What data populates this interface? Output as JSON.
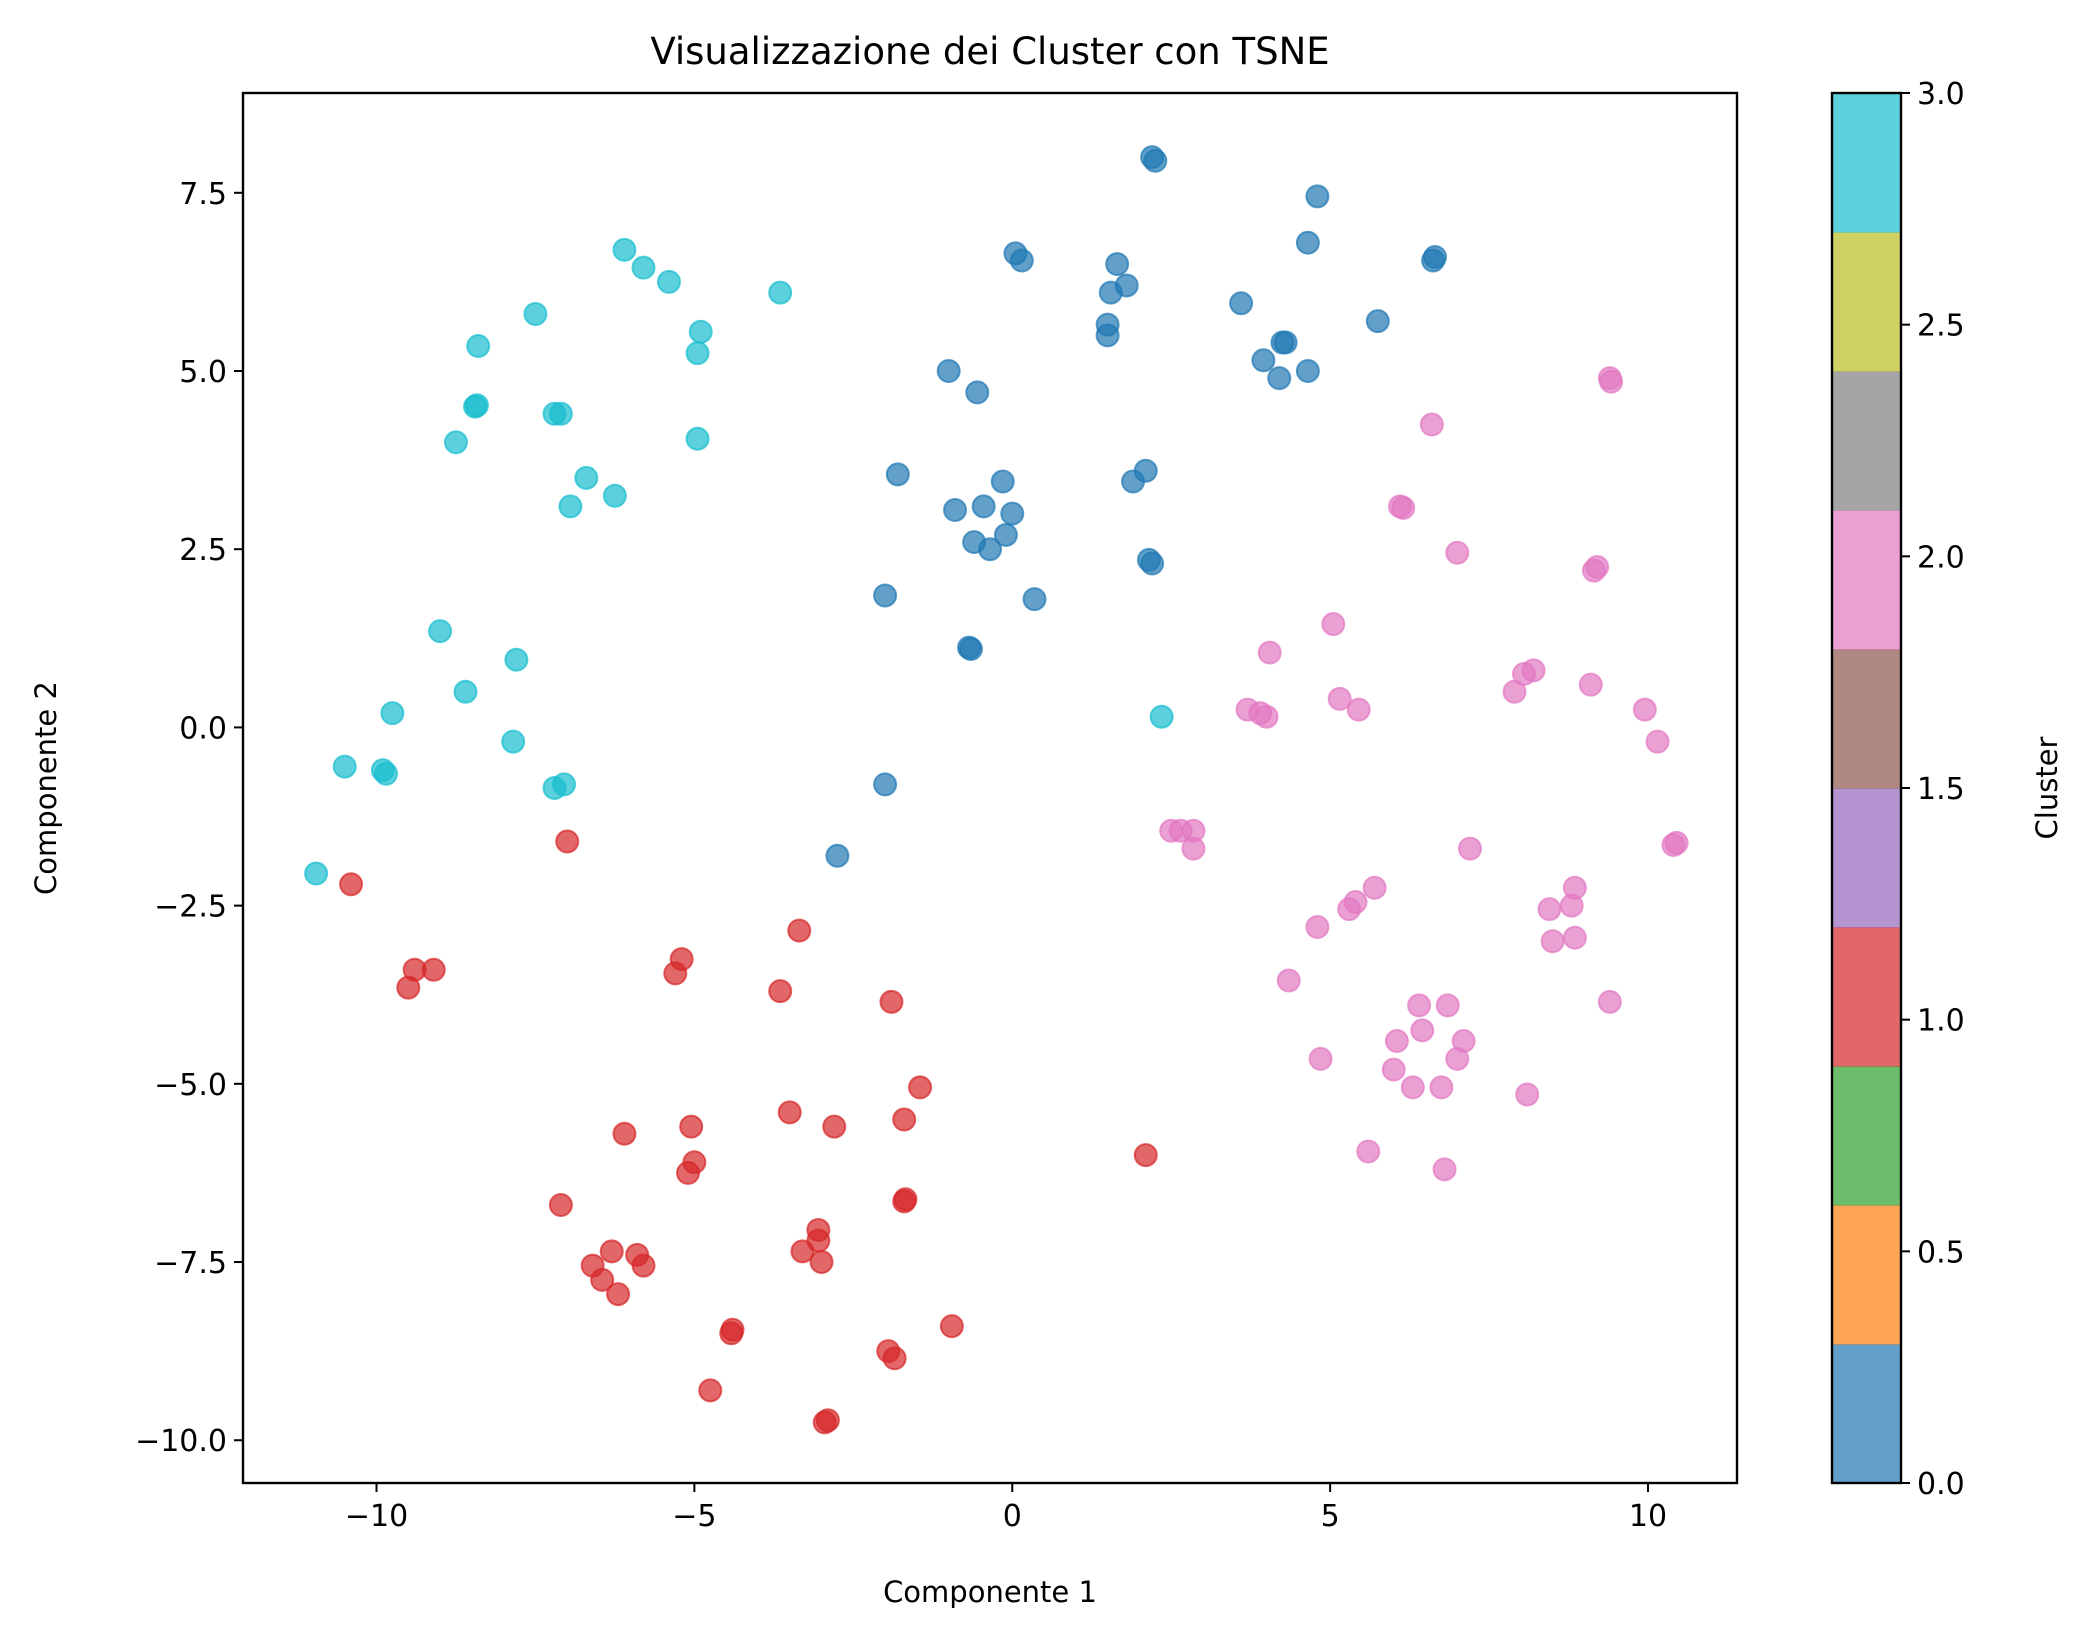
{
  "chart_data": {
    "type": "scatter",
    "title": "Visualizzazione dei Cluster con TSNE",
    "xlabel": "Componente 1",
    "ylabel": "Componente 2",
    "xlim": [
      -12.1,
      11.4
    ],
    "ylim": [
      -10.6,
      8.9
    ],
    "xticks": [
      -10,
      -5,
      0,
      5,
      10
    ],
    "xtick_labels": [
      "−10",
      "−5",
      "0",
      "5",
      "10"
    ],
    "yticks": [
      7.5,
      5.0,
      2.5,
      0.0,
      -2.5,
      -5.0,
      -7.5,
      -10.0
    ],
    "ytick_labels": [
      "7.5",
      "5.0",
      "2.5",
      "0.0",
      "−2.5",
      "−5.0",
      "−7.5",
      "−10.0"
    ],
    "grid": false,
    "marker_alpha": 0.7,
    "colorbar": {
      "label": "Cluster",
      "range": [
        0,
        3
      ],
      "ticks": [
        0.0,
        0.5,
        1.0,
        1.5,
        2.0,
        2.5,
        3.0
      ],
      "tick_labels": [
        "0.0",
        "0.5",
        "1.0",
        "1.5",
        "2.0",
        "2.5",
        "3.0"
      ],
      "colors": [
        "#1f77b4",
        "#ff7f0e",
        "#2ca02c",
        "#d62728",
        "#9467bd",
        "#8c564b",
        "#e377c2",
        "#7f7f7f",
        "#bcbd22",
        "#17becf"
      ]
    },
    "series": [
      {
        "cluster": 0,
        "color": "#1f77b4",
        "points": [
          [
            2.2,
            8.0
          ],
          [
            2.25,
            7.95
          ],
          [
            4.8,
            7.45
          ],
          [
            4.65,
            6.8
          ],
          [
            6.65,
            6.6
          ],
          [
            6.62,
            6.55
          ],
          [
            0.05,
            6.65
          ],
          [
            0.15,
            6.55
          ],
          [
            1.65,
            6.5
          ],
          [
            1.55,
            6.1
          ],
          [
            1.8,
            6.2
          ],
          [
            3.6,
            5.95
          ],
          [
            5.75,
            5.7
          ],
          [
            1.5,
            5.65
          ],
          [
            1.5,
            5.5
          ],
          [
            -1.0,
            5.0
          ],
          [
            -0.55,
            4.7
          ],
          [
            4.3,
            5.4
          ],
          [
            4.25,
            5.4
          ],
          [
            3.95,
            5.15
          ],
          [
            4.2,
            4.9
          ],
          [
            4.65,
            5.0
          ],
          [
            -1.8,
            3.55
          ],
          [
            -0.15,
            3.45
          ],
          [
            1.9,
            3.45
          ],
          [
            2.1,
            3.6
          ],
          [
            -0.9,
            3.05
          ],
          [
            -0.45,
            3.1
          ],
          [
            0.0,
            3.0
          ],
          [
            -0.6,
            2.6
          ],
          [
            -0.35,
            2.5
          ],
          [
            -0.1,
            2.7
          ],
          [
            2.15,
            2.35
          ],
          [
            2.2,
            2.3
          ],
          [
            -2.0,
            1.85
          ],
          [
            0.35,
            1.8
          ],
          [
            -0.65,
            1.1
          ],
          [
            -0.68,
            1.12
          ],
          [
            -2.0,
            -0.8
          ],
          [
            -2.75,
            -1.8
          ]
        ]
      },
      {
        "cluster": 1,
        "color": "#d62728",
        "points": [
          [
            -7.0,
            -1.6
          ],
          [
            -10.4,
            -2.2
          ],
          [
            -9.4,
            -3.4
          ],
          [
            -9.1,
            -3.4
          ],
          [
            -9.5,
            -3.65
          ],
          [
            -3.35,
            -2.85
          ],
          [
            -5.2,
            -3.25
          ],
          [
            -5.3,
            -3.45
          ],
          [
            -3.65,
            -3.7
          ],
          [
            -1.9,
            -3.85
          ],
          [
            -1.45,
            -5.05
          ],
          [
            -3.5,
            -5.4
          ],
          [
            -1.7,
            -5.5
          ],
          [
            -5.05,
            -5.6
          ],
          [
            -2.8,
            -5.6
          ],
          [
            -6.1,
            -5.7
          ],
          [
            -5.0,
            -6.1
          ],
          [
            -5.1,
            -6.25
          ],
          [
            2.1,
            -6.0
          ],
          [
            -1.7,
            -6.65
          ],
          [
            -1.68,
            -6.62
          ],
          [
            -7.1,
            -6.7
          ],
          [
            -3.05,
            -7.05
          ],
          [
            -3.05,
            -7.2
          ],
          [
            -3.3,
            -7.35
          ],
          [
            -3.0,
            -7.5
          ],
          [
            -6.3,
            -7.35
          ],
          [
            -5.9,
            -7.4
          ],
          [
            -6.6,
            -7.55
          ],
          [
            -5.8,
            -7.55
          ],
          [
            -6.45,
            -7.75
          ],
          [
            -6.2,
            -7.95
          ],
          [
            -4.4,
            -8.45
          ],
          [
            -4.42,
            -8.5
          ],
          [
            -0.95,
            -8.4
          ],
          [
            -1.95,
            -8.75
          ],
          [
            -1.85,
            -8.85
          ],
          [
            -4.75,
            -9.3
          ],
          [
            -2.95,
            -9.75
          ],
          [
            -2.9,
            -9.72
          ]
        ]
      },
      {
        "cluster": 2,
        "color": "#e377c2",
        "points": [
          [
            9.4,
            4.9
          ],
          [
            9.42,
            4.85
          ],
          [
            6.6,
            4.25
          ],
          [
            6.1,
            3.1
          ],
          [
            6.15,
            3.08
          ],
          [
            7.0,
            2.45
          ],
          [
            9.15,
            2.2
          ],
          [
            9.2,
            2.25
          ],
          [
            5.05,
            1.45
          ],
          [
            4.05,
            1.05
          ],
          [
            8.05,
            0.75
          ],
          [
            8.2,
            0.8
          ],
          [
            7.9,
            0.5
          ],
          [
            9.1,
            0.6
          ],
          [
            5.15,
            0.4
          ],
          [
            5.45,
            0.25
          ],
          [
            3.7,
            0.25
          ],
          [
            3.9,
            0.2
          ],
          [
            4.0,
            0.15
          ],
          [
            9.95,
            0.25
          ],
          [
            10.15,
            -0.2
          ],
          [
            2.5,
            -1.45
          ],
          [
            2.65,
            -1.45
          ],
          [
            2.85,
            -1.45
          ],
          [
            2.85,
            -1.7
          ],
          [
            7.2,
            -1.7
          ],
          [
            10.4,
            -1.65
          ],
          [
            10.45,
            -1.62
          ],
          [
            5.7,
            -2.25
          ],
          [
            5.4,
            -2.45
          ],
          [
            5.3,
            -2.55
          ],
          [
            8.85,
            -2.25
          ],
          [
            8.8,
            -2.5
          ],
          [
            8.45,
            -2.55
          ],
          [
            4.8,
            -2.8
          ],
          [
            8.85,
            -2.95
          ],
          [
            8.5,
            -3.0
          ],
          [
            4.35,
            -3.55
          ],
          [
            6.4,
            -3.9
          ],
          [
            6.85,
            -3.9
          ],
          [
            9.4,
            -3.85
          ],
          [
            6.45,
            -4.25
          ],
          [
            6.05,
            -4.4
          ],
          [
            7.1,
            -4.4
          ],
          [
            4.85,
            -4.65
          ],
          [
            7.0,
            -4.65
          ],
          [
            6.0,
            -4.8
          ],
          [
            6.3,
            -5.05
          ],
          [
            6.75,
            -5.05
          ],
          [
            8.1,
            -5.15
          ],
          [
            5.6,
            -5.95
          ],
          [
            6.8,
            -6.2
          ]
        ]
      },
      {
        "cluster": 3,
        "color": "#17becf",
        "points": [
          [
            -6.1,
            6.7
          ],
          [
            -5.8,
            6.45
          ],
          [
            -5.4,
            6.25
          ],
          [
            -3.65,
            6.1
          ],
          [
            -7.5,
            5.8
          ],
          [
            -4.9,
            5.55
          ],
          [
            -4.95,
            5.25
          ],
          [
            -8.4,
            5.35
          ],
          [
            -8.45,
            4.5
          ],
          [
            -8.42,
            4.52
          ],
          [
            -7.2,
            4.4
          ],
          [
            -7.1,
            4.4
          ],
          [
            -4.95,
            4.05
          ],
          [
            -8.75,
            4.0
          ],
          [
            -6.7,
            3.5
          ],
          [
            -6.25,
            3.25
          ],
          [
            -6.95,
            3.1
          ],
          [
            -9.0,
            1.35
          ],
          [
            -7.8,
            0.95
          ],
          [
            -8.6,
            0.5
          ],
          [
            -9.75,
            0.2
          ],
          [
            -7.85,
            -0.2
          ],
          [
            -10.5,
            -0.55
          ],
          [
            -9.9,
            -0.6
          ],
          [
            -9.85,
            -0.65
          ],
          [
            -7.2,
            -0.85
          ],
          [
            -7.05,
            -0.8
          ],
          [
            -10.95,
            -2.05
          ],
          [
            2.35,
            0.15
          ]
        ]
      }
    ]
  }
}
